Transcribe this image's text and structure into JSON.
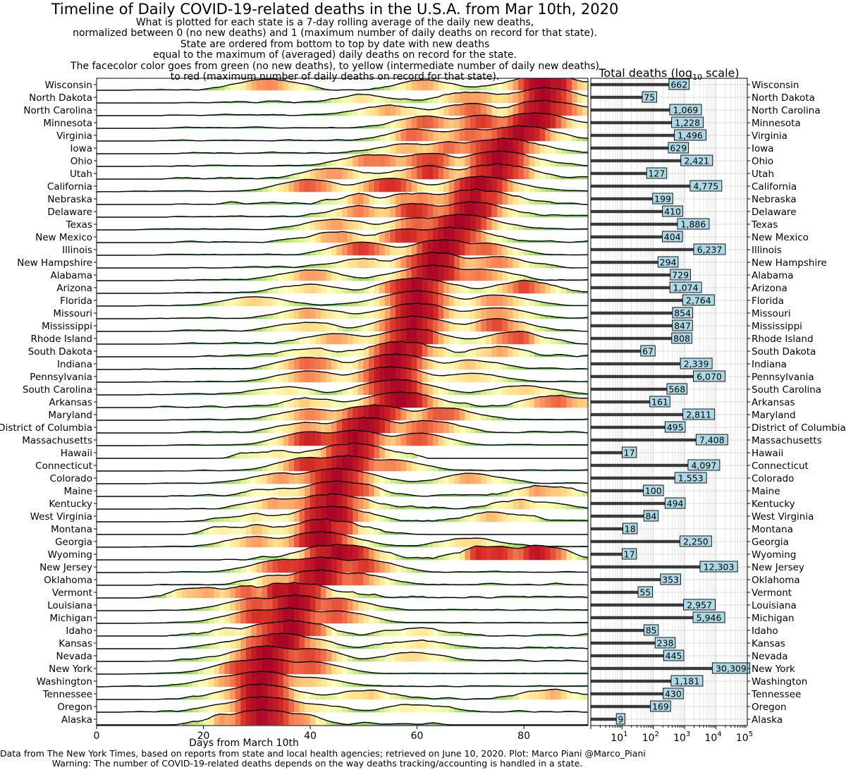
{
  "figure": {
    "title": "Timeline of Daily COVID-19-related deaths in the U.S.A. from Mar 10th, 2020",
    "subtitle_lines": [
      "What is plotted for each state is a 7-day rolling average of the daily new deaths,",
      "normalized between 0 (no new deaths) and 1 (maximum number of daily deaths on record for that state).",
      "State are ordered from bottom to top by date with new deaths",
      "equal to the maximum of (averaged) daily deaths on record for the state.",
      "The facecolor color goes from green (no new deaths), to yellow (intermediate number of daily new deaths)",
      "to red (maximum number of daily deaths on record for that state)."
    ],
    "footer_lines": [
      "Data from The New York Times, based on reports from state and local health agencies; retrieved on June 10, 2020. Plot: Marco Piani @Marco_Piani",
      "Warning: The number of COVID-19-related deaths depends on the way deaths tracking/accounting is handled in a state."
    ]
  },
  "chart_data": [
    {
      "type": "area",
      "name": "ridgeline",
      "xlabel": "Days from March 10th",
      "xlim": [
        0,
        92
      ],
      "xticks": [
        0,
        20,
        40,
        60,
        80
      ],
      "ylim": [
        0,
        1
      ],
      "colormap": [
        "#1a9850",
        "#91cf60",
        "#d9ef8b",
        "#ffffbf",
        "#fee08b",
        "#fc8d59",
        "#d73027",
        "#a50026"
      ],
      "series": [
        {
          "name": "Wisconsin",
          "start": 7,
          "peak": 84,
          "secondary": [
            [
              32,
              0.75
            ],
            [
              62,
              0.65
            ]
          ],
          "noise": 0.22
        },
        {
          "name": "North Dakota",
          "start": 15,
          "peak": 84,
          "secondary": [
            [
              50,
              0.55
            ],
            [
              70,
              0.75
            ]
          ],
          "noise": 0.3
        },
        {
          "name": "North Carolina",
          "start": 12,
          "peak": 84,
          "secondary": [
            [
              55,
              0.7
            ],
            [
              70,
              0.8
            ]
          ],
          "noise": 0.2
        },
        {
          "name": "Minnesota",
          "start": 12,
          "peak": 82,
          "secondary": [
            [
              62,
              0.8
            ],
            [
              72,
              0.85
            ]
          ],
          "noise": 0.12
        },
        {
          "name": "Virginia",
          "start": 12,
          "peak": 79,
          "secondary": [
            [
              60,
              0.75
            ],
            [
              70,
              0.8
            ]
          ],
          "noise": 0.15
        },
        {
          "name": "Iowa",
          "start": 14,
          "peak": 76,
          "secondary": [
            [
              58,
              0.65
            ],
            [
              66,
              0.75
            ]
          ],
          "noise": 0.18
        },
        {
          "name": "Ohio",
          "start": 10,
          "peak": 75,
          "secondary": [
            [
              52,
              0.8
            ],
            [
              62,
              0.85
            ]
          ],
          "noise": 0.15
        },
        {
          "name": "Utah",
          "start": 14,
          "peak": 75,
          "secondary": [
            [
              45,
              0.7
            ],
            [
              62,
              0.85
            ]
          ],
          "noise": 0.3
        },
        {
          "name": "California",
          "start": 2,
          "peak": 72,
          "secondary": [
            [
              40,
              0.8
            ],
            [
              55,
              0.9
            ]
          ],
          "noise": 0.08
        },
        {
          "name": "Nebraska",
          "start": 16,
          "peak": 71,
          "secondary": [
            [
              50,
              0.6
            ],
            [
              60,
              0.75
            ]
          ],
          "noise": 0.3
        },
        {
          "name": "Delaware",
          "start": 15,
          "peak": 70,
          "secondary": [
            [
              50,
              0.7
            ],
            [
              60,
              0.85
            ]
          ],
          "noise": 0.22
        },
        {
          "name": "Texas",
          "start": 8,
          "peak": 68,
          "secondary": [
            [
              45,
              0.7
            ],
            [
              60,
              0.8
            ]
          ],
          "noise": 0.1
        },
        {
          "name": "New Mexico",
          "start": 14,
          "peak": 66,
          "secondary": [
            [
              45,
              0.7
            ],
            [
              58,
              0.85
            ]
          ],
          "noise": 0.2
        },
        {
          "name": "Illinois",
          "start": 8,
          "peak": 65,
          "secondary": [
            [
              50,
              0.85
            ],
            [
              72,
              0.8
            ]
          ],
          "noise": 0.1
        },
        {
          "name": "New Hampshire",
          "start": 18,
          "peak": 63,
          "secondary": [
            [
              50,
              0.6
            ],
            [
              75,
              0.7
            ]
          ],
          "noise": 0.25
        },
        {
          "name": "Alabama",
          "start": 12,
          "peak": 63,
          "secondary": [
            [
              40,
              0.7
            ],
            [
              72,
              0.75
            ]
          ],
          "noise": 0.15
        },
        {
          "name": "Arizona",
          "start": 12,
          "peak": 60,
          "secondary": [
            [
              40,
              0.6
            ],
            [
              80,
              0.8
            ]
          ],
          "noise": 0.15
        },
        {
          "name": "Florida",
          "start": 8,
          "peak": 60,
          "secondary": [
            [
              30,
              0.6
            ],
            [
              75,
              0.7
            ]
          ],
          "noise": 0.1
        },
        {
          "name": "Missouri",
          "start": 10,
          "peak": 60,
          "secondary": [
            [
              40,
              0.7
            ],
            [
              75,
              0.7
            ]
          ],
          "noise": 0.12
        },
        {
          "name": "Mississippi",
          "start": 12,
          "peak": 59,
          "secondary": [
            [
              40,
              0.6
            ],
            [
              75,
              0.8
            ]
          ],
          "noise": 0.15
        },
        {
          "name": "Rhode Island",
          "start": 14,
          "peak": 59,
          "secondary": [
            [
              45,
              0.7
            ],
            [
              78,
              0.8
            ]
          ],
          "noise": 0.18
        },
        {
          "name": "South Dakota",
          "start": 20,
          "peak": 57,
          "secondary": [
            [
              40,
              0.5
            ],
            [
              75,
              0.6
            ]
          ],
          "noise": 0.3
        },
        {
          "name": "Indiana",
          "start": 8,
          "peak": 56,
          "secondary": [
            [
              40,
              0.8
            ],
            [
              70,
              0.6
            ]
          ],
          "noise": 0.12
        },
        {
          "name": "Pennsylvania",
          "start": 8,
          "peak": 55,
          "secondary": [
            [
              40,
              0.75
            ],
            [
              70,
              0.6
            ]
          ],
          "noise": 0.1
        },
        {
          "name": "South Carolina",
          "start": 10,
          "peak": 56,
          "secondary": [
            [
              35,
              0.5
            ],
            [
              80,
              0.6
            ]
          ],
          "noise": 0.15
        },
        {
          "name": "Arkansas",
          "start": 12,
          "peak": 57,
          "secondary": [
            [
              40,
              0.6
            ],
            [
              86,
              0.8
            ]
          ],
          "noise": 0.25
        },
        {
          "name": "Maryland",
          "start": 12,
          "peak": 52,
          "secondary": [
            [
              40,
              0.75
            ],
            [
              65,
              0.8
            ]
          ],
          "noise": 0.1
        },
        {
          "name": "District of Columbia",
          "start": 15,
          "peak": 50,
          "secondary": [
            [
              40,
              0.7
            ],
            [
              62,
              0.8
            ]
          ],
          "noise": 0.15
        },
        {
          "name": "Massachusetts",
          "start": 10,
          "peak": 48,
          "secondary": [
            [
              40,
              0.9
            ],
            [
              60,
              0.8
            ]
          ],
          "noise": 0.08
        },
        {
          "name": "Hawaii",
          "start": 21,
          "peak": 48,
          "secondary": [
            [
              33,
              0.5
            ]
          ],
          "noise": 0.3,
          "end": 60
        },
        {
          "name": "Connecticut",
          "start": 12,
          "peak": 47,
          "secondary": [
            [
              40,
              0.9
            ],
            [
              55,
              0.75
            ]
          ],
          "noise": 0.1
        },
        {
          "name": "Colorado",
          "start": 10,
          "peak": 45,
          "secondary": [
            [
              35,
              0.7
            ],
            [
              70,
              0.65
            ]
          ],
          "noise": 0.12
        },
        {
          "name": "Maine",
          "start": 14,
          "peak": 45,
          "secondary": [
            [
              35,
              0.6
            ],
            [
              85,
              0.7
            ]
          ],
          "noise": 0.3
        },
        {
          "name": "Kentucky",
          "start": 12,
          "peak": 44,
          "secondary": [
            [
              35,
              0.7
            ],
            [
              80,
              0.6
            ]
          ],
          "noise": 0.25
        },
        {
          "name": "West Virginia",
          "start": 15,
          "peak": 44,
          "secondary": [
            [
              30,
              0.5
            ],
            [
              75,
              0.6
            ]
          ],
          "noise": 0.25
        },
        {
          "name": "Montana",
          "start": 18,
          "peak": 43,
          "secondary": [
            [
              22,
              0.6
            ],
            [
              30,
              0.6
            ]
          ],
          "noise": 0.35,
          "end": 60
        },
        {
          "name": "Georgia",
          "start": 8,
          "peak": 42,
          "secondary": [
            [
              30,
              0.7
            ],
            [
              70,
              0.6
            ]
          ],
          "noise": 0.12
        },
        {
          "name": "Wyoming",
          "start": 25,
          "peak": 45,
          "secondary": [
            [
              74,
              0.9
            ],
            [
              83,
              0.9
            ]
          ],
          "noise": 0.3
        },
        {
          "name": "New Jersey",
          "start": 10,
          "peak": 42,
          "secondary": [
            [
              35,
              0.85
            ],
            [
              50,
              0.85
            ]
          ],
          "noise": 0.1
        },
        {
          "name": "Oklahoma",
          "start": 12,
          "peak": 42,
          "secondary": [
            [
              35,
              0.7
            ],
            [
              48,
              0.8
            ]
          ],
          "noise": 0.2
        },
        {
          "name": "Vermont",
          "start": 8,
          "peak": 37,
          "secondary": [
            [
              20,
              0.6
            ],
            [
              28,
              0.7
            ]
          ],
          "noise": 0.35
        },
        {
          "name": "Louisiana",
          "start": 10,
          "peak": 37,
          "secondary": [
            [
              30,
              0.8
            ],
            [
              45,
              0.8
            ]
          ],
          "noise": 0.1
        },
        {
          "name": "Michigan",
          "start": 8,
          "peak": 36,
          "secondary": [
            [
              30,
              0.85
            ],
            [
              45,
              0.8
            ]
          ],
          "noise": 0.08
        },
        {
          "name": "Idaho",
          "start": 14,
          "peak": 36,
          "secondary": [
            [
              28,
              0.6
            ],
            [
              60,
              0.5
            ]
          ],
          "noise": 0.3
        },
        {
          "name": "Kansas",
          "start": 12,
          "peak": 35,
          "secondary": [
            [
              30,
              0.7
            ],
            [
              60,
              0.55
            ]
          ],
          "noise": 0.25
        },
        {
          "name": "Nevada",
          "start": 10,
          "peak": 32,
          "secondary": [
            [
              40,
              0.8
            ],
            [
              60,
              0.6
            ]
          ],
          "noise": 0.18
        },
        {
          "name": "New York",
          "start": 6,
          "peak": 32,
          "secondary": [
            [
              28,
              0.9
            ],
            [
              40,
              0.8
            ]
          ],
          "noise": 0.05
        },
        {
          "name": "Washington",
          "start": 0,
          "peak": 31,
          "secondary": [
            [
              25,
              0.7
            ],
            [
              40,
              0.6
            ]
          ],
          "noise": 0.1
        },
        {
          "name": "Tennessee",
          "start": 10,
          "peak": 31,
          "secondary": [
            [
              50,
              0.6
            ],
            [
              85,
              0.65
            ]
          ],
          "noise": 0.18
        },
        {
          "name": "Oregon",
          "start": 6,
          "peak": 31,
          "secondary": [
            [
              40,
              0.55
            ],
            [
              60,
              0.5
            ]
          ],
          "noise": 0.2
        },
        {
          "name": "Alaska",
          "start": 16,
          "peak": 31,
          "secondary": [
            [
              24,
              0.6
            ],
            [
              35,
              0.85
            ]
          ],
          "noise": 0.3,
          "end": 65
        }
      ]
    },
    {
      "type": "bar",
      "name": "total-deaths",
      "title": "Total deaths (log",
      "title_sub": "10",
      "title_tail": " scale)",
      "xscale": "log",
      "xlim": [
        1,
        100000
      ],
      "xticks": [
        {
          "base": "10",
          "exp": "1",
          "value": 10
        },
        {
          "base": "10",
          "exp": "2",
          "value": 100
        },
        {
          "base": "10",
          "exp": "3",
          "value": 1000
        },
        {
          "base": "10",
          "exp": "4",
          "value": 10000
        },
        {
          "base": "10",
          "exp": "5",
          "value": 100000
        }
      ],
      "grid": true,
      "categories": [
        "Wisconsin",
        "North Dakota",
        "North Carolina",
        "Minnesota",
        "Virginia",
        "Iowa",
        "Ohio",
        "Utah",
        "California",
        "Nebraska",
        "Delaware",
        "Texas",
        "New Mexico",
        "Illinois",
        "New Hampshire",
        "Alabama",
        "Arizona",
        "Florida",
        "Missouri",
        "Mississippi",
        "Rhode Island",
        "South Dakota",
        "Indiana",
        "Pennsylvania",
        "South Carolina",
        "Arkansas",
        "Maryland",
        "District of Columbia",
        "Massachusetts",
        "Hawaii",
        "Connecticut",
        "Colorado",
        "Maine",
        "Kentucky",
        "West Virginia",
        "Montana",
        "Georgia",
        "Wyoming",
        "New Jersey",
        "Oklahoma",
        "Vermont",
        "Louisiana",
        "Michigan",
        "Idaho",
        "Kansas",
        "Nevada",
        "New York",
        "Washington",
        "Tennessee",
        "Oregon",
        "Alaska"
      ],
      "values": [
        662,
        75,
        1069,
        1228,
        1496,
        629,
        2421,
        127,
        4775,
        199,
        410,
        1886,
        404,
        6237,
        294,
        729,
        1074,
        2764,
        854,
        847,
        808,
        67,
        2339,
        6070,
        568,
        161,
        2811,
        495,
        7408,
        17,
        4097,
        1553,
        100,
        494,
        84,
        18,
        2250,
        17,
        12303,
        353,
        55,
        2957,
        5946,
        85,
        238,
        445,
        30309,
        1181,
        430,
        169,
        9
      ],
      "labels": [
        "662",
        "75",
        "1,069",
        "1,228",
        "1,496",
        "629",
        "2,421",
        "127",
        "4,775",
        "199",
        "410",
        "1,886",
        "404",
        "6,237",
        "294",
        "729",
        "1,074",
        "2,764",
        "854",
        "847",
        "808",
        "67",
        "2,339",
        "6,070",
        "568",
        "161",
        "2,811",
        "495",
        "7,408",
        "17",
        "4,097",
        "1,553",
        "100",
        "494",
        "84",
        "18",
        "2,250",
        "17",
        "12,303",
        "353",
        "55",
        "2,957",
        "5,946",
        "85",
        "238",
        "445",
        "30,309",
        "1,181",
        "430",
        "169",
        "9"
      ],
      "colors": {
        "bar": "#3a3a3a",
        "label_face": "#add8e6",
        "grid": "#cfcfcf"
      }
    }
  ]
}
